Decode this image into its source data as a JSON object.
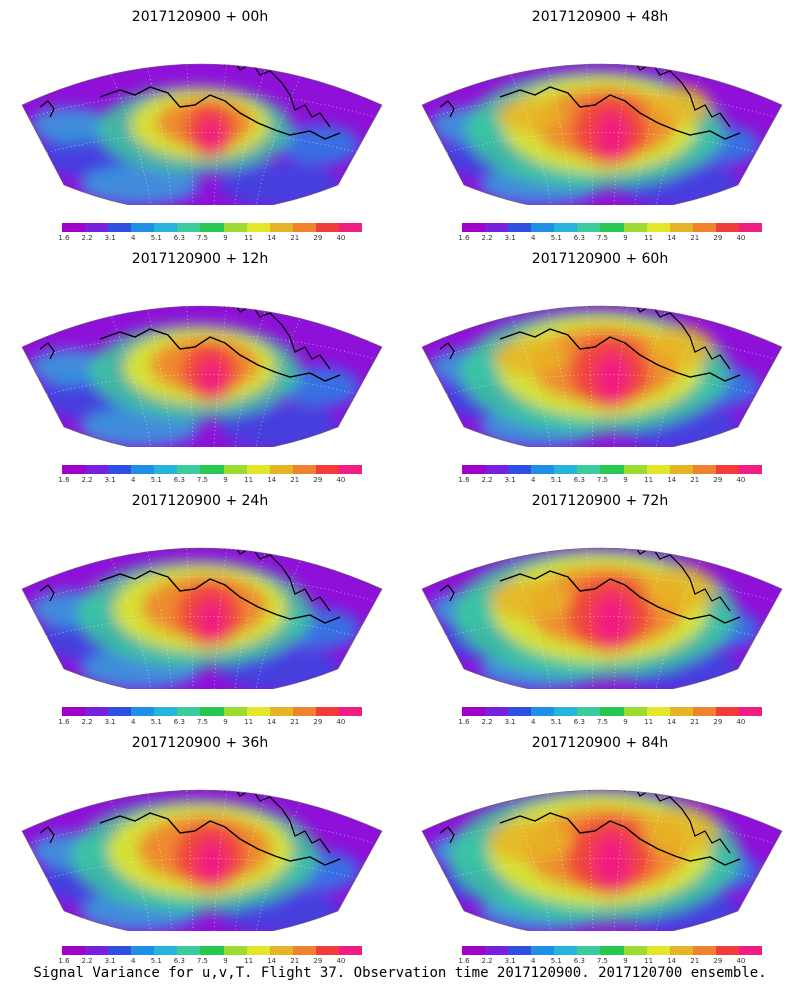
{
  "panels": [
    {
      "title": "2017120900 + 00h",
      "intensity": 0.35
    },
    {
      "title": "2017120900 + 48h",
      "intensity": 0.75
    },
    {
      "title": "2017120900 + 12h",
      "intensity": 0.45
    },
    {
      "title": "2017120900 + 60h",
      "intensity": 0.82
    },
    {
      "title": "2017120900 + 24h",
      "intensity": 0.6
    },
    {
      "title": "2017120900 + 72h",
      "intensity": 0.9
    },
    {
      "title": "2017120900 + 36h",
      "intensity": 0.68
    },
    {
      "title": "2017120900 + 84h",
      "intensity": 0.95
    }
  ],
  "colorbar": {
    "labels": [
      "1.6",
      "2.2",
      "3.1",
      "4",
      "5.1",
      "6.3",
      "7.5",
      "9",
      "11",
      "14",
      "21",
      "29",
      "40"
    ],
    "colors": [
      "#a000c8",
      "#7a1fdc",
      "#2f4fe0",
      "#1e90e6",
      "#27b4dc",
      "#3ccc9c",
      "#28c850",
      "#9cdc32",
      "#e6e628",
      "#e6b428",
      "#f0822d",
      "#f03c3c",
      "#f01e82"
    ]
  },
  "footer": "Signal Variance for u,v,T. Flight 37. Observation time 2017120900. 2017120700 ensemble."
}
